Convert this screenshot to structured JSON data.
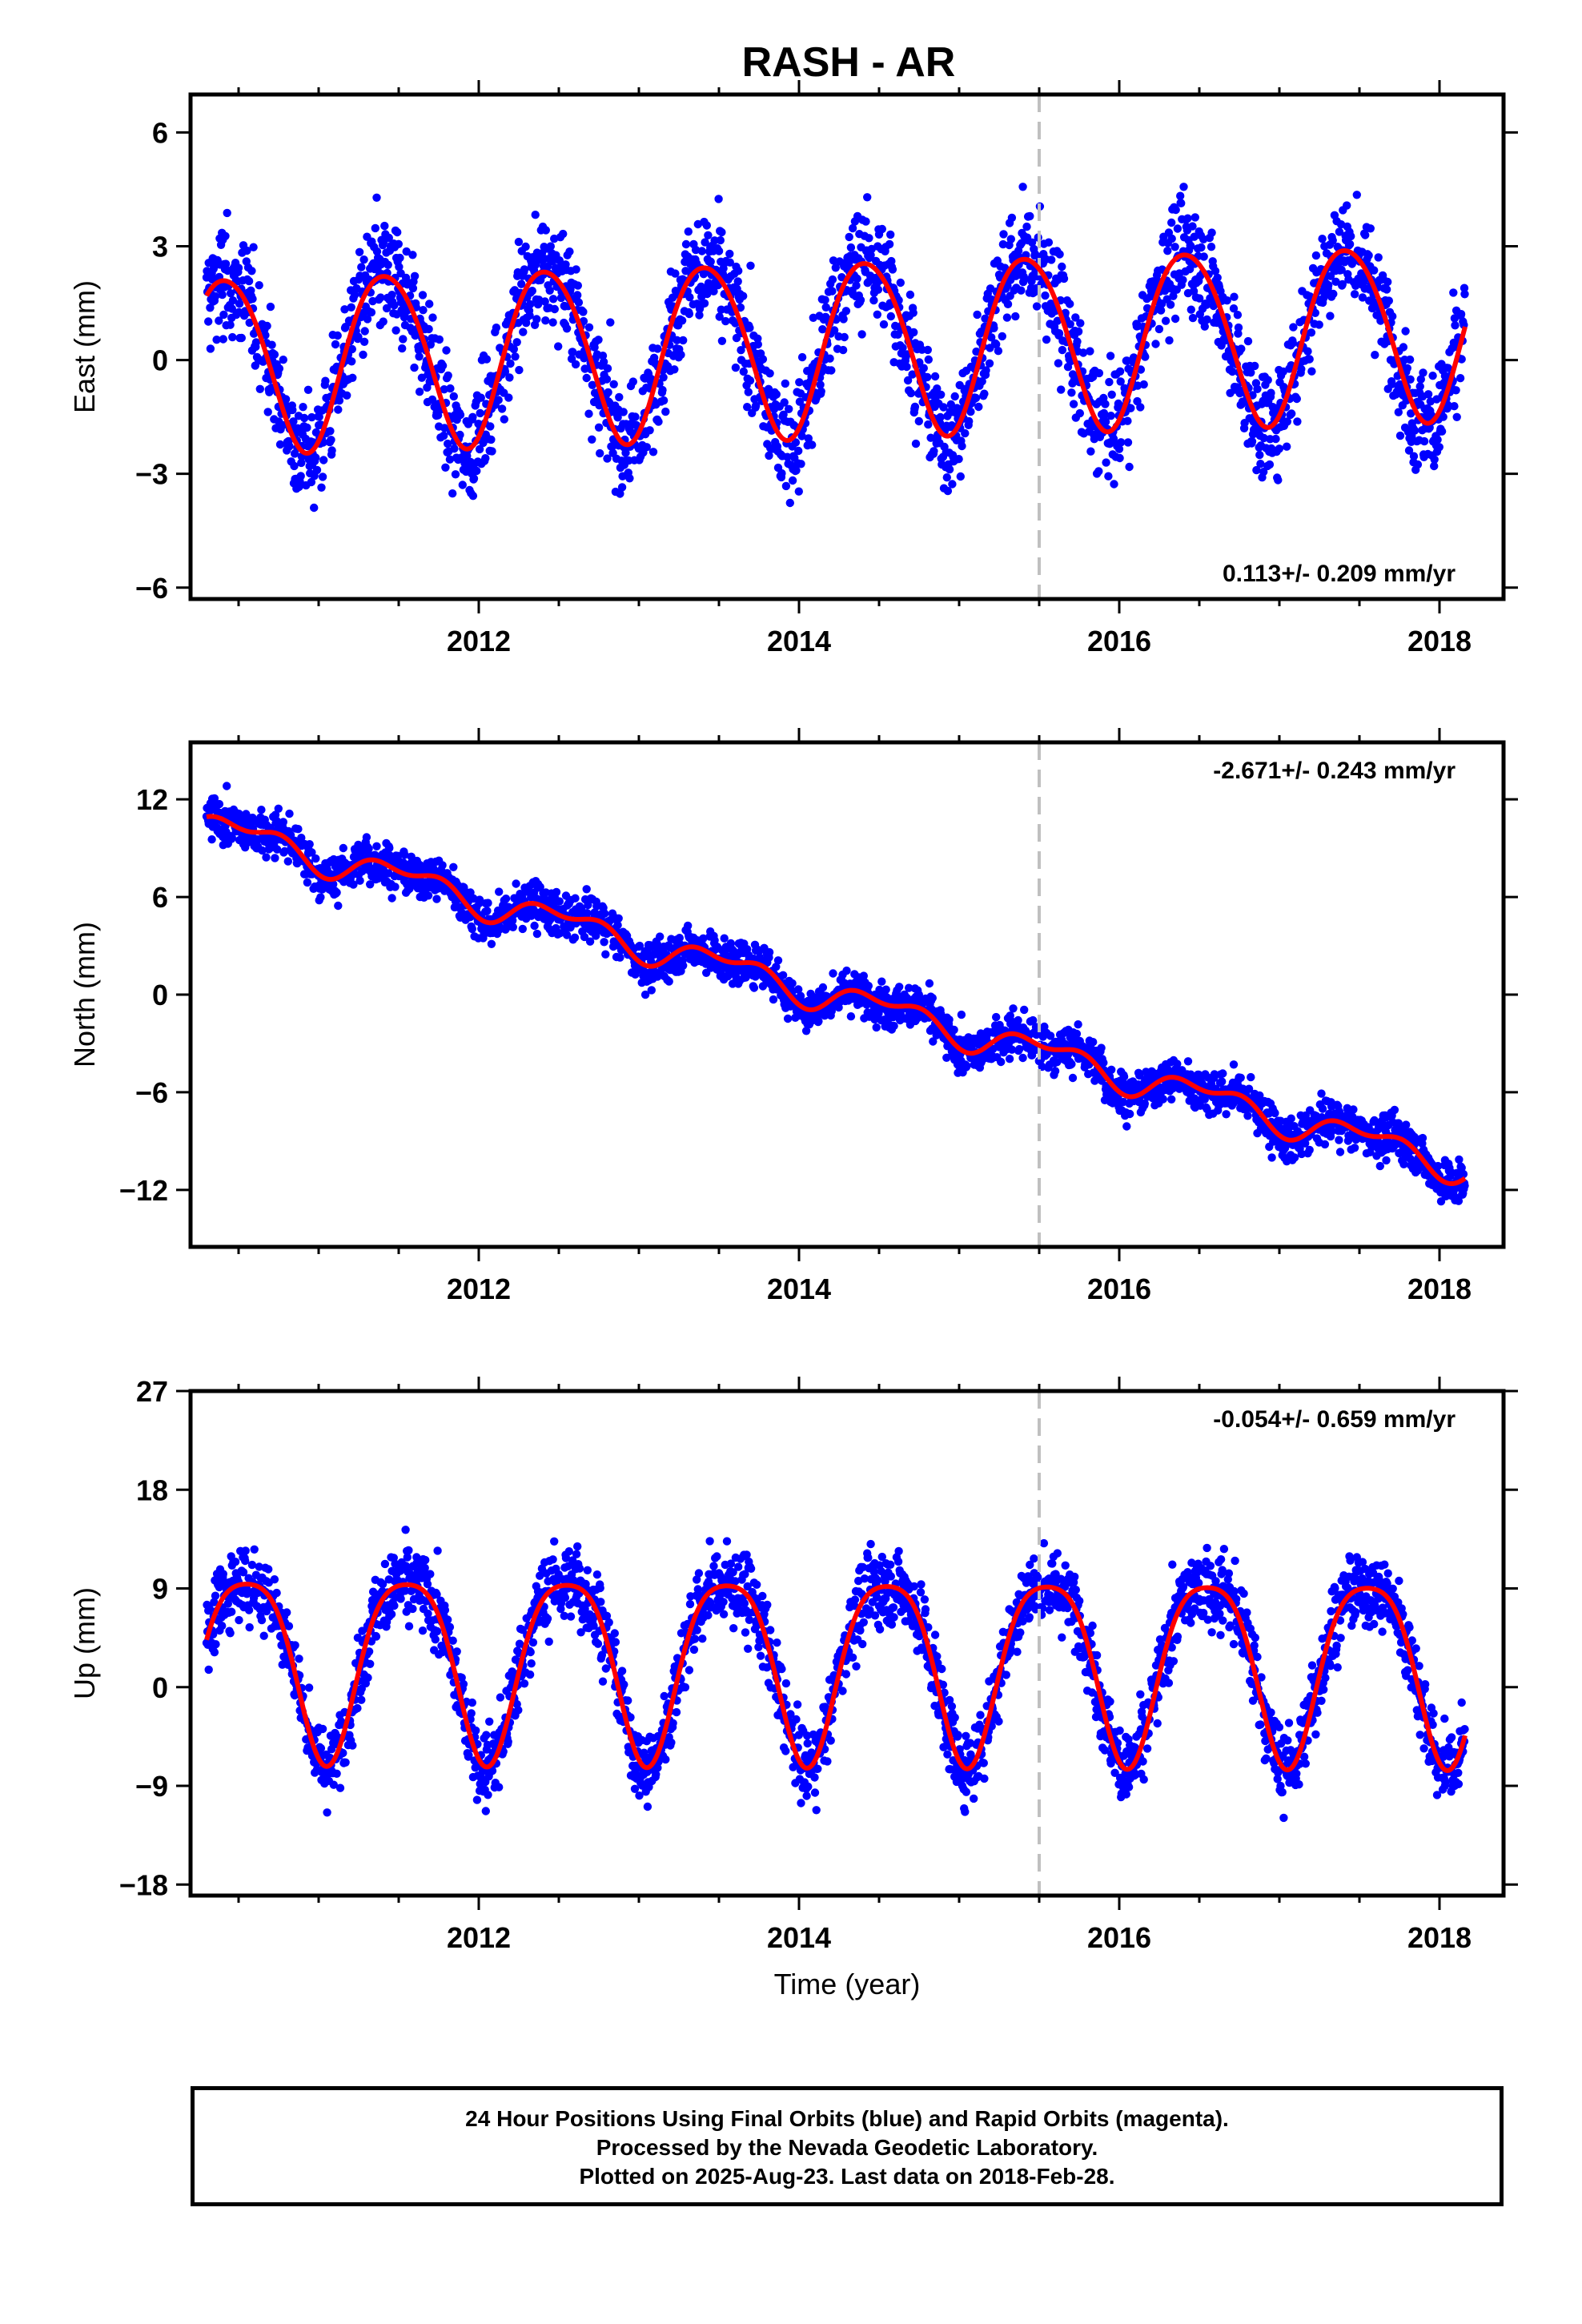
{
  "title": "RASH - AR",
  "chart_data": {
    "type": "scatter",
    "title": "RASH - AR",
    "xlabel": "Time (year)",
    "xlim": [
      2010.2,
      2018.4
    ],
    "x_ticks": [
      2012,
      2014,
      2016,
      2018
    ],
    "x_tick_labels": [
      "2012",
      "2014",
      "2016",
      "2018"
    ],
    "equipment_change_epoch": 2015.5,
    "data_start": 2010.3,
    "data_end": 2018.16,
    "point_color": "#0000ff",
    "fit_color": "#ff0000",
    "marker_color": "#c0c0c0",
    "panels": [
      {
        "name": "East",
        "ylabel": "East (mm)",
        "ylim": [
          -6.3,
          7.0
        ],
        "yticks": [
          -6,
          -3,
          0,
          3,
          6
        ],
        "ytick_labels": [
          "−6",
          "−3",
          "0",
          "3",
          "6"
        ],
        "rate_text": "0.113+/- 0.209 mm/yr",
        "rate_position": "bottom-right",
        "fit": {
          "offset": 0.4,
          "rate": 0.113,
          "annual_amp": 2.3,
          "annual_peak": 0.42,
          "semi_amp": 0.2,
          "semi_peak": 0.2,
          "noise": 1.4
        }
      },
      {
        "name": "North",
        "ylabel": "North (mm)",
        "ylim": [
          -15.5,
          15.5
        ],
        "yticks": [
          -12,
          -6,
          0,
          6,
          12
        ],
        "ytick_labels": [
          "−12",
          "−6",
          "0",
          "6",
          "12"
        ],
        "rate_text": "-2.671+/- 0.243 mm/yr",
        "rate_position": "top-right",
        "fit": {
          "offset": 0.0,
          "rate": -2.671,
          "annual_amp": 0.8,
          "annual_peak": 0.55,
          "semi_amp": 0.5,
          "semi_peak": 0.3,
          "noise": 1.3
        }
      },
      {
        "name": "Up",
        "ylabel": "Up (mm)",
        "ylim": [
          -19,
          27
        ],
        "yticks": [
          -18,
          -9,
          0,
          9,
          18,
          27
        ],
        "ytick_labels": [
          "−18",
          "−9",
          "0",
          "9",
          "18",
          "27"
        ],
        "rate_text": "-0.054+/- 0.659 mm/yr",
        "rate_position": "top-right",
        "fit": {
          "offset": 2.5,
          "rate": -0.054,
          "annual_amp": 8.3,
          "annual_peak": 0.55,
          "semi_amp": 1.6,
          "semi_peak": 0.3,
          "noise": 3.4
        }
      }
    ]
  },
  "footer": {
    "line1": "24 Hour Positions Using Final Orbits (blue) and Rapid Orbits (magenta).",
    "line2": "Processed by the Nevada Geodetic Laboratory.",
    "line3": "Plotted on 2025-Aug-23. Last data on 2018-Feb-28."
  }
}
